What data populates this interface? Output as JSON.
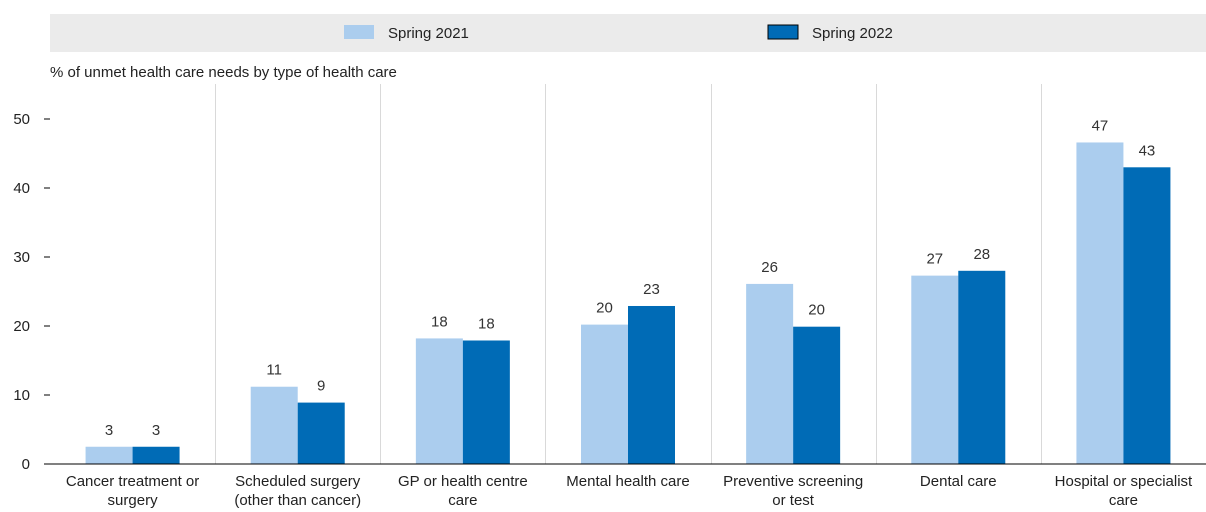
{
  "chart_data": {
    "type": "bar",
    "ylabel": "% of unmet health care needs by type of health care",
    "xlabel": "",
    "ylim": [
      0,
      50
    ],
    "yticks": [
      0,
      10,
      20,
      30,
      40,
      50
    ],
    "grid": "vertical separators between categories",
    "legend_position": "top",
    "categories": [
      [
        "Cancer treatment or",
        "surgery"
      ],
      [
        "Scheduled surgery",
        "(other than cancer)"
      ],
      [
        "GP or health centre",
        "care"
      ],
      [
        "Mental health care"
      ],
      [
        "Preventive screening",
        "or test"
      ],
      [
        "Dental care"
      ],
      [
        "Hospital or specialist",
        "care"
      ]
    ],
    "series": [
      {
        "name": "Spring 2021",
        "color": "#abcdee",
        "values": [
          2.5,
          11.2,
          18.2,
          20.2,
          26.1,
          27.3,
          46.6
        ],
        "labels": [
          "3",
          "11",
          "18",
          "20",
          "26",
          "27",
          "47"
        ]
      },
      {
        "name": "Spring 2022",
        "color": "#006bb6",
        "values": [
          2.5,
          8.9,
          17.9,
          22.9,
          19.9,
          28.0,
          43.0
        ],
        "labels": [
          "3",
          "9",
          "18",
          "23",
          "20",
          "28",
          "43"
        ]
      }
    ]
  }
}
